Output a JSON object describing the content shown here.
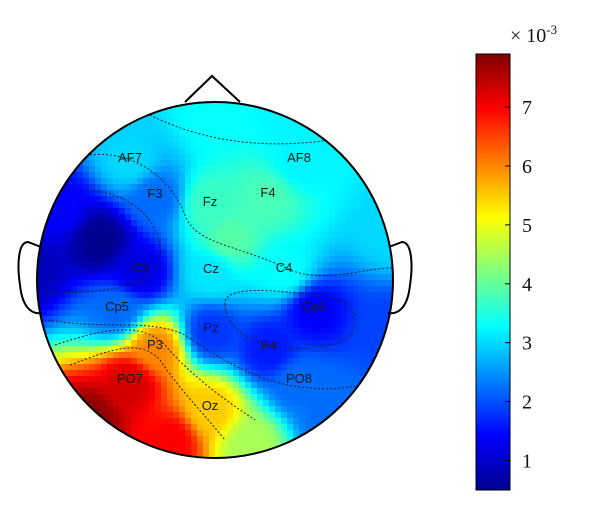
{
  "chart_data": {
    "type": "heatmap",
    "subtype": "eeg-scalp-topography",
    "colormap": "jet",
    "colorbar": {
      "multiplier_base": "× 10",
      "multiplier_exp": "-3",
      "min": 0.5,
      "max": 7.9,
      "ticks": [
        1,
        2,
        3,
        4,
        5,
        6,
        7
      ],
      "tick_labels": [
        "1",
        "2",
        "3",
        "4",
        "5",
        "6",
        "7"
      ]
    },
    "electrodes": [
      {
        "label": "AF7",
        "value": 3.0
      },
      {
        "label": "AF8",
        "value": 3.2
      },
      {
        "label": "F3",
        "value": 2.2
      },
      {
        "label": "Fz",
        "value": 3.7
      },
      {
        "label": "F4",
        "value": 3.8
      },
      {
        "label": "C3",
        "value": 1.2
      },
      {
        "label": "Cz",
        "value": 3.1
      },
      {
        "label": "C4",
        "value": 3.3
      },
      {
        "label": "Cp5",
        "value": 2.2
      },
      {
        "label": "Cp6",
        "value": 1.4
      },
      {
        "label": "Pz",
        "value": 1.8
      },
      {
        "label": "P3",
        "value": 6.0
      },
      {
        "label": "P4",
        "value": 1.6
      },
      {
        "label": "PO7",
        "value": 7.3
      },
      {
        "label": "PO8",
        "value": 2.2
      },
      {
        "label": "Oz",
        "value": 5.5
      }
    ]
  }
}
